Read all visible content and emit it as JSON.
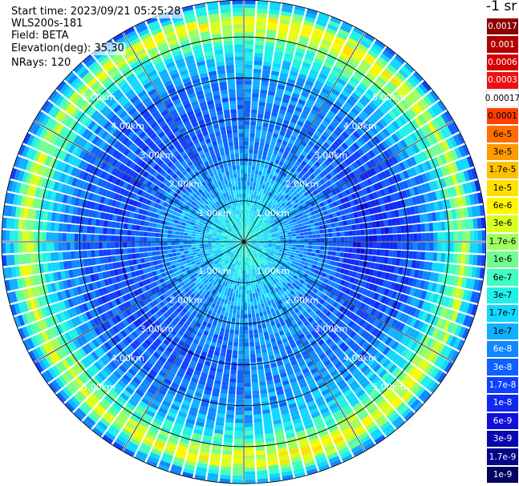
{
  "info": {
    "start_time": "Start time: 2023/09/21 05:25:28",
    "instrument": "WLS200s-181",
    "field": "Field: BETA",
    "elevation": "Elevation(deg): 35.30",
    "nrays": "NRays: 120"
  },
  "colorbar": {
    "unit": "-1 sr",
    "ticks": [
      "0.0017",
      "0.001",
      "0.0006",
      "0.0003",
      "0.00017",
      "0.0001",
      "6e-5",
      "3e-5",
      "1.7e-5",
      "1e-5",
      "6e-6",
      "3e-6",
      "1.7e-6",
      "1e-6",
      "6e-7",
      "3e-7",
      "1.7e-7",
      "1e-7",
      "6e-8",
      "3e-8",
      "1.7e-8",
      "1e-8",
      "6e-9",
      "3e-9",
      "1.7e-9",
      "1e-9"
    ],
    "colors": [
      "#8b0000",
      "#b00000",
      "#d40000",
      "#ee1010",
      "#ffffff",
      "#ff4000",
      "#ff7000",
      "#ff9a00",
      "#ffc000",
      "#ffe000",
      "#fff700",
      "#d8ff20",
      "#a0ff60",
      "#70ff90",
      "#40ffc0",
      "#20f0e8",
      "#10d8ff",
      "#10b0ff",
      "#1088ff",
      "#1060ff",
      "#1040ff",
      "#1028f0",
      "#1010d8",
      "#0808b0",
      "#040488",
      "#020260"
    ]
  },
  "chart_data": {
    "type": "ppi",
    "field": "BETA",
    "elevation_deg": 35.3,
    "nrays": 120,
    "range_rings_km": [
      1.0,
      2.0,
      3.0,
      4.0,
      5.0
    ],
    "ring_labels": [
      "1.00km",
      "2.00km",
      "3.00km",
      "4.00km",
      "5.00km"
    ],
    "max_range_km": 5.9,
    "spokes_deg": [
      0,
      30,
      60,
      90,
      120,
      150,
      180,
      210,
      240,
      270,
      300,
      330
    ],
    "profile": [
      {
        "r_km": 0.0,
        "log10_beta": -6.5
      },
      {
        "r_km": 0.5,
        "log10_beta": -6.6
      },
      {
        "r_km": 1.0,
        "log10_beta": -6.9
      },
      {
        "r_km": 2.0,
        "log10_beta": -7.3
      },
      {
        "r_km": 3.0,
        "log10_beta": -7.6
      },
      {
        "r_km": 4.0,
        "log10_beta": -7.4
      },
      {
        "r_km": 4.6,
        "log10_beta": -6.9
      },
      {
        "r_km": 5.0,
        "log10_beta": -6.2
      },
      {
        "r_km": 5.4,
        "log10_beta": -5.4
      },
      {
        "r_km": 5.6,
        "log10_beta": -6.4
      },
      {
        "r_km": 5.9,
        "log10_beta": -7.5
      }
    ]
  }
}
